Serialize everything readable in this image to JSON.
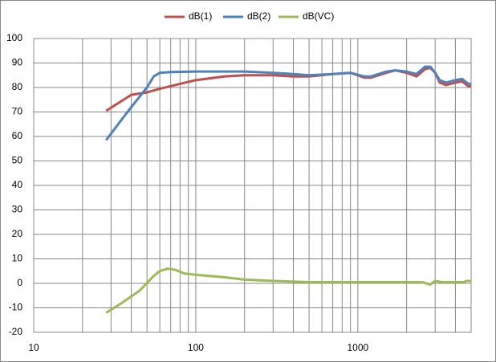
{
  "chart_data": {
    "type": "line",
    "xscale": "log",
    "grid": true,
    "x_minor_grid": true,
    "legend": "top",
    "xlim": [
      10,
      5000
    ],
    "xticks": [
      10,
      100,
      1000
    ],
    "ylim": [
      -20,
      100
    ],
    "yticks": [
      -20,
      -10,
      0,
      10,
      20,
      30,
      40,
      50,
      60,
      70,
      80,
      90,
      100
    ],
    "series": [
      {
        "name": "dB(1)",
        "color": "#c0504d",
        "x": [
          28,
          40,
          50,
          60,
          80,
          100,
          150,
          200,
          300,
          400,
          500,
          700,
          900,
          1100,
          1200,
          1500,
          1700,
          2000,
          2300,
          2600,
          2800,
          3000,
          3200,
          3500,
          4000,
          4400,
          4800,
          5000
        ],
        "values": [
          70.5,
          77,
          78,
          79.5,
          81.5,
          83,
          84.5,
          85,
          85,
          84.5,
          84.5,
          85.5,
          86,
          84,
          84,
          86,
          87,
          86,
          84.5,
          87.5,
          88,
          86,
          82,
          81,
          82,
          82.5,
          80.5,
          80.5
        ]
      },
      {
        "name": "dB(2)",
        "color": "#4f81bd",
        "x": [
          28,
          35,
          40,
          50,
          55,
          60,
          70,
          100,
          200,
          300,
          400,
          500,
          700,
          900,
          1100,
          1200,
          1500,
          1700,
          2000,
          2300,
          2600,
          2800,
          3000,
          3200,
          3500,
          4000,
          4400,
          4800,
          5000
        ],
        "values": [
          58.5,
          67,
          72,
          80,
          84.5,
          86,
          86.3,
          86.5,
          86.5,
          86,
          85.5,
          85,
          85.5,
          86,
          84.5,
          84.5,
          86.5,
          87,
          86.5,
          85.5,
          88.5,
          88.5,
          86,
          83,
          82,
          83,
          83.5,
          81.5,
          81.5
        ]
      },
      {
        "name": "dB(VC)",
        "color": "#9bbb59",
        "x": [
          28,
          35,
          45,
          55,
          60,
          67,
          75,
          85,
          100,
          150,
          200,
          300,
          500,
          1000,
          2000,
          2500,
          2800,
          3000,
          3300,
          4000,
          4500,
          4700,
          5000
        ],
        "values": [
          -12,
          -8,
          -3,
          3,
          5,
          6,
          5.5,
          4,
          3.5,
          2.5,
          1.5,
          1,
          0.5,
          0.5,
          0.5,
          0.5,
          -0.5,
          1,
          0.5,
          0.5,
          0.5,
          1,
          1
        ]
      }
    ]
  }
}
